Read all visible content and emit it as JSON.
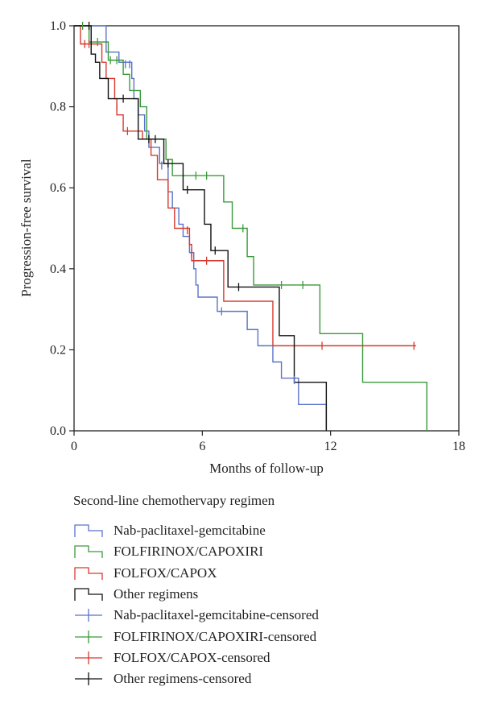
{
  "chart_data": {
    "type": "line",
    "subtype": "kaplan-meier step",
    "xlabel": "Months of follow-up",
    "ylabel": "Progression-free survival",
    "xlim": [
      0,
      18
    ],
    "ylim": [
      0,
      1.0
    ],
    "xticks": [
      "0",
      "6",
      "12",
      "18"
    ],
    "yticks": [
      "0.0",
      "0.2",
      "0.4",
      "0.6",
      "0.8",
      "1.0"
    ],
    "grid": false,
    "legend": {
      "title": "Second-line chemothervapy regimen",
      "placement": "bottom",
      "entries": [
        {
          "label": "Nab-paclitaxel-gemcitabine",
          "kind": "step",
          "color": "#5a72c8"
        },
        {
          "label": "FOLFIRINOX/CAPOXIRI",
          "kind": "step",
          "color": "#3a9a3a"
        },
        {
          "label": "FOLFOX/CAPOX",
          "kind": "step",
          "color": "#d63a2e"
        },
        {
          "label": "Other regimens",
          "kind": "step",
          "color": "#111111"
        },
        {
          "label": "Nab-paclitaxel-gemcitabine-censored",
          "kind": "censor",
          "color": "#5a72c8"
        },
        {
          "label": "FOLFIRINOX/CAPOXIRI-censored",
          "kind": "censor",
          "color": "#3a9a3a"
        },
        {
          "label": "FOLFOX/CAPOX-censored",
          "kind": "censor",
          "color": "#d63a2e"
        },
        {
          "label": "Other regimens-censored",
          "kind": "censor",
          "color": "#111111"
        }
      ]
    },
    "series": [
      {
        "name": "Nab-paclitaxel-gemcitabine",
        "color": "#5a72c8",
        "steps": [
          [
            0,
            1.0
          ],
          [
            1.5,
            0.935
          ],
          [
            2.1,
            0.91
          ],
          [
            2.7,
            0.87
          ],
          [
            2.8,
            0.82
          ],
          [
            3.0,
            0.78
          ],
          [
            3.3,
            0.74
          ],
          [
            3.5,
            0.7
          ],
          [
            4.0,
            0.66
          ],
          [
            4.4,
            0.59
          ],
          [
            4.6,
            0.55
          ],
          [
            4.9,
            0.51
          ],
          [
            5.1,
            0.48
          ],
          [
            5.4,
            0.44
          ],
          [
            5.6,
            0.4
          ],
          [
            5.7,
            0.36
          ],
          [
            5.8,
            0.33
          ],
          [
            6.7,
            0.295
          ],
          [
            8.1,
            0.25
          ],
          [
            8.6,
            0.21
          ],
          [
            9.3,
            0.17
          ],
          [
            9.7,
            0.13
          ],
          [
            10.5,
            0.065
          ],
          [
            11.8,
            0.0
          ]
        ],
        "end": 11.8,
        "censored": [
          [
            2.4,
            0.905
          ],
          [
            2.6,
            0.905
          ],
          [
            4.1,
            0.655
          ],
          [
            6.9,
            0.295
          ],
          [
            10.3,
            0.125
          ]
        ]
      },
      {
        "name": "FOLFIRINOX/CAPOXIRI",
        "color": "#3a9a3a",
        "steps": [
          [
            0,
            1.0
          ],
          [
            0.7,
            0.96
          ],
          [
            1.6,
            0.915
          ],
          [
            2.3,
            0.88
          ],
          [
            2.6,
            0.84
          ],
          [
            3.1,
            0.8
          ],
          [
            3.4,
            0.72
          ],
          [
            4.3,
            0.67
          ],
          [
            4.6,
            0.63
          ],
          [
            7.0,
            0.565
          ],
          [
            7.4,
            0.5
          ],
          [
            8.1,
            0.43
          ],
          [
            8.4,
            0.36
          ],
          [
            11.5,
            0.24
          ],
          [
            13.5,
            0.12
          ],
          [
            16.5,
            0.0
          ]
        ],
        "end": 16.5,
        "censored": [
          [
            0.4,
            1.0
          ],
          [
            1.1,
            0.96
          ],
          [
            1.7,
            0.915
          ],
          [
            2.0,
            0.915
          ],
          [
            5.7,
            0.63
          ],
          [
            6.2,
            0.63
          ],
          [
            7.9,
            0.5
          ],
          [
            9.7,
            0.36
          ],
          [
            10.7,
            0.36
          ]
        ]
      },
      {
        "name": "FOLFOX/CAPOX",
        "color": "#d63a2e",
        "steps": [
          [
            0,
            1.0
          ],
          [
            0.3,
            0.955
          ],
          [
            1.3,
            0.91
          ],
          [
            1.5,
            0.87
          ],
          [
            1.9,
            0.82
          ],
          [
            2.0,
            0.78
          ],
          [
            2.3,
            0.74
          ],
          [
            3.2,
            0.72
          ],
          [
            3.6,
            0.68
          ],
          [
            3.9,
            0.62
          ],
          [
            4.4,
            0.55
          ],
          [
            4.7,
            0.5
          ],
          [
            5.4,
            0.46
          ],
          [
            5.5,
            0.42
          ],
          [
            7.0,
            0.32
          ],
          [
            9.3,
            0.21
          ],
          [
            16.0,
            0.21
          ]
        ],
        "end": 16.0,
        "censored": [
          [
            0.5,
            0.955
          ],
          [
            0.7,
            0.955
          ],
          [
            2.0,
            0.8
          ],
          [
            2.5,
            0.74
          ],
          [
            5.3,
            0.495
          ],
          [
            5.5,
            0.44
          ],
          [
            6.2,
            0.42
          ],
          [
            11.6,
            0.21
          ],
          [
            15.9,
            0.21
          ]
        ]
      },
      {
        "name": "Other regimens",
        "color": "#111111",
        "steps": [
          [
            0,
            1.0
          ],
          [
            0.8,
            0.93
          ],
          [
            1.0,
            0.91
          ],
          [
            1.2,
            0.87
          ],
          [
            1.6,
            0.82
          ],
          [
            2.3,
            0.82
          ],
          [
            3.0,
            0.72
          ],
          [
            4.2,
            0.66
          ],
          [
            5.1,
            0.595
          ],
          [
            6.1,
            0.51
          ],
          [
            6.4,
            0.445
          ],
          [
            7.2,
            0.355
          ],
          [
            9.6,
            0.235
          ],
          [
            10.3,
            0.12
          ],
          [
            11.8,
            0.0
          ]
        ],
        "end": 11.8,
        "censored": [
          [
            0.7,
            1.0
          ],
          [
            2.3,
            0.82
          ],
          [
            3.5,
            0.72
          ],
          [
            3.8,
            0.72
          ],
          [
            4.4,
            0.66
          ],
          [
            5.3,
            0.595
          ],
          [
            6.6,
            0.445
          ],
          [
            7.7,
            0.355
          ]
        ]
      }
    ]
  }
}
